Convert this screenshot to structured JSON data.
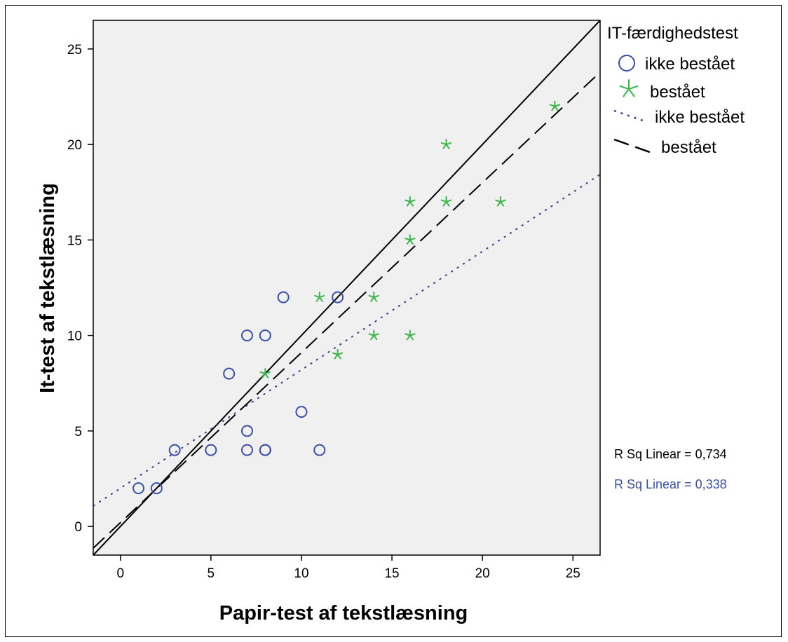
{
  "chart_data": {
    "type": "scatter",
    "xlabel": "Papir-test af tekstlæsning",
    "ylabel": "It-test af tekstlæsning",
    "xlim": [
      -1.5,
      26.5
    ],
    "ylim": [
      -1.5,
      26.5
    ],
    "xticks": [
      "0",
      "5",
      "10",
      "15",
      "20",
      "25"
    ],
    "yticks": [
      "0",
      "5",
      "10",
      "15",
      "20",
      "25"
    ],
    "grid": false,
    "legend_position": "right",
    "legend_title": "IT-færdighedstest",
    "series": [
      {
        "name": "ikke beståaet",
        "label": "ikke bestået",
        "marker": "circle",
        "color": "#3b4fa8",
        "points": [
          [
            1,
            2
          ],
          [
            2,
            2
          ],
          [
            3,
            4
          ],
          [
            5,
            4
          ],
          [
            6,
            8
          ],
          [
            7,
            10
          ],
          [
            8,
            10
          ],
          [
            7,
            5
          ],
          [
            7,
            4
          ],
          [
            8,
            4
          ],
          [
            8,
            4
          ],
          [
            9,
            12
          ],
          [
            10,
            6
          ],
          [
            11,
            4
          ],
          [
            12,
            12
          ]
        ]
      },
      {
        "name": "bestået",
        "label": "bestået",
        "marker": "star",
        "color": "#3cb54a",
        "points": [
          [
            8,
            8
          ],
          [
            11,
            12
          ],
          [
            12,
            9
          ],
          [
            14,
            12
          ],
          [
            14,
            10
          ],
          [
            16,
            17
          ],
          [
            16,
            15
          ],
          [
            16,
            10
          ],
          [
            18,
            20
          ],
          [
            18,
            17
          ],
          [
            21,
            17
          ],
          [
            24,
            22
          ]
        ]
      }
    ],
    "fit_lines": [
      {
        "label": "ikke bestået",
        "style": "dotted",
        "color": "#3b3b8f",
        "intercept": 2.0,
        "slope": 0.62,
        "rsq_label": "R Sq Linear = 0,338",
        "rsq_color": "#3b4fa8"
      },
      {
        "label": "bestået",
        "style": "dashed",
        "color": "#000000",
        "intercept": 0.2,
        "slope": 0.89,
        "rsq_label": "R Sq Linear = 0,734",
        "rsq_color": "#000000"
      }
    ],
    "reference_line": {
      "style": "solid",
      "color": "#000000",
      "intercept": 0,
      "slope": 1
    }
  }
}
